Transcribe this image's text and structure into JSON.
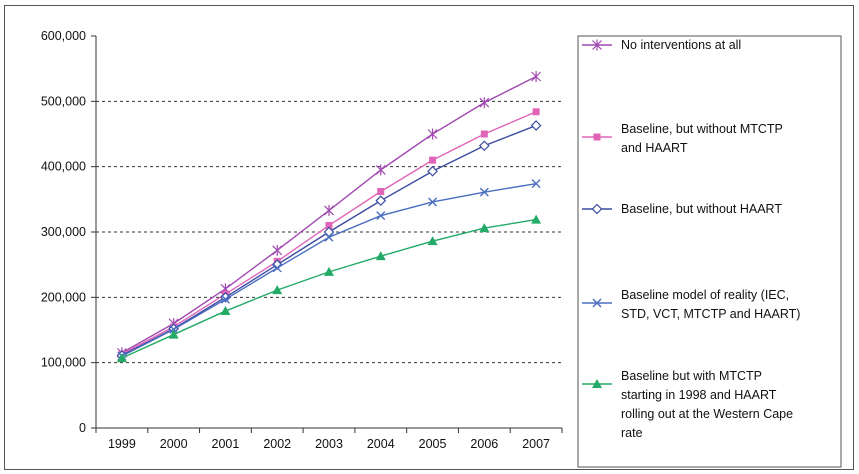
{
  "chart_data": {
    "type": "line",
    "title": "",
    "xlabel": "",
    "ylabel": "",
    "x": [
      "1999",
      "2000",
      "2001",
      "2002",
      "2003",
      "2004",
      "2005",
      "2006",
      "2007"
    ],
    "y_ticks": [
      "0",
      "100,000",
      "200,000",
      "300,000",
      "400,000",
      "500,000",
      "600,000"
    ],
    "ylim": [
      0,
      600000
    ],
    "grid": "dashed horizontal at 100,000 intervals (100,000 to 500,000)",
    "legend_position": "right",
    "series": [
      {
        "name": "No interventions at all",
        "legend_lines": [
          "No interventions at all"
        ],
        "color": "#a04ab0",
        "marker": "star",
        "values": [
          115000,
          160000,
          213000,
          272000,
          333000,
          395000,
          450000,
          498000,
          538000
        ]
      },
      {
        "name": "Baseline, but without MTCTP and HAART",
        "legend_lines": [
          "Baseline, but without MTCTP",
          "and HAART"
        ],
        "color": "#e065b8",
        "marker": "square",
        "values": [
          113000,
          155000,
          205000,
          255000,
          310000,
          362000,
          410000,
          450000,
          484000
        ]
      },
      {
        "name": "Baseline, but without HAART",
        "legend_lines": [
          "Baseline, but without HAART"
        ],
        "color": "#3a4aa0",
        "marker": "diamond",
        "values": [
          111000,
          152000,
          200000,
          250000,
          300000,
          348000,
          393000,
          432000,
          463000
        ]
      },
      {
        "name": "Baseline model of reality (IEC, STD, VCT, MTCTP and HAART)",
        "legend_lines": [
          "Baseline model of reality (IEC,",
          "STD, VCT, MTCTP and HAART)"
        ],
        "color": "#4a6ec0",
        "marker": "x",
        "values": [
          110000,
          151000,
          197000,
          245000,
          292000,
          325000,
          346000,
          361000,
          374000
        ]
      },
      {
        "name": "Baseline but with MTCTP starting in 1998 and HAART rolling out at the Western Cape rate",
        "legend_lines": [
          "Baseline but with MTCTP",
          "starting in 1998 and HAART",
          "rolling out at the Western Cape",
          "rate"
        ],
        "color": "#22aa66",
        "marker": "triangle",
        "values": [
          107000,
          143000,
          179000,
          211000,
          239000,
          263000,
          286000,
          306000,
          319000
        ]
      }
    ]
  }
}
